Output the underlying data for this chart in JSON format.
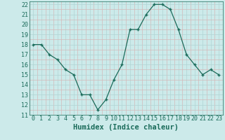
{
  "x": [
    0,
    1,
    2,
    3,
    4,
    5,
    6,
    7,
    8,
    9,
    10,
    11,
    12,
    13,
    14,
    15,
    16,
    17,
    18,
    19,
    20,
    21,
    22,
    23
  ],
  "y": [
    18,
    18,
    17,
    16.5,
    15.5,
    15,
    13,
    13,
    11.5,
    12.5,
    14.5,
    16,
    19.5,
    19.5,
    21,
    22,
    22,
    21.5,
    19.5,
    17,
    16,
    15,
    15.5,
    15
  ],
  "line_color": "#1a6b5a",
  "marker_color": "#1a6b5a",
  "bg_color": "#cceaea",
  "major_grid_color": "#b0d4d4",
  "minor_grid_color": "#d4b8b8",
  "xlabel": "Humidex (Indice chaleur)",
  "xlim": [
    0,
    23
  ],
  "ylim": [
    11,
    22
  ],
  "yticks": [
    11,
    12,
    13,
    14,
    15,
    16,
    17,
    18,
    19,
    20,
    21,
    22
  ],
  "xticks": [
    0,
    1,
    2,
    3,
    4,
    5,
    6,
    7,
    8,
    9,
    10,
    11,
    12,
    13,
    14,
    15,
    16,
    17,
    18,
    19,
    20,
    21,
    22,
    23
  ],
  "font_color": "#1a6b5a",
  "xlabel_fontsize": 7.5,
  "tick_fontsize": 6.0
}
